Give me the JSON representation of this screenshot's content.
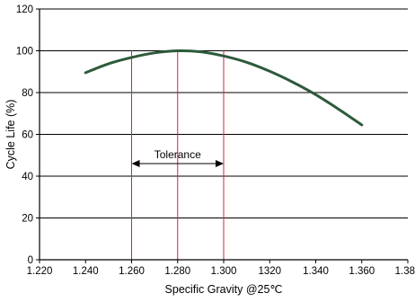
{
  "chart_data": {
    "type": "line",
    "xlabel": "Specific Gravity @25℃",
    "ylabel": "Cycle Life (%)",
    "xlim": [
      1.22,
      1.38
    ],
    "ylim": [
      0,
      120
    ],
    "x_ticks": [
      "1.220",
      "1.240",
      "1.260",
      "1.280",
      "1.300",
      "1320",
      "1.340",
      "1.360",
      "1.380"
    ],
    "y_ticks": [
      "0",
      "20",
      "40",
      "60",
      "80",
      "100",
      "120"
    ],
    "grid": "horizontal",
    "series": [
      {
        "color": "#2d5a3a",
        "x": [
          1.24,
          1.25,
          1.26,
          1.27,
          1.28,
          1.29,
          1.3,
          1.31,
          1.32,
          1.33,
          1.34,
          1.35,
          1.36
        ],
        "y": [
          89.5,
          93.8,
          96.8,
          99.0,
          100.0,
          99.5,
          97.5,
          94.5,
          90.2,
          85.0,
          79.0,
          72.0,
          64.5
        ]
      }
    ],
    "reference_lines": [
      {
        "x": 1.26,
        "color": "#d9223c"
      },
      {
        "x": 1.28,
        "color": "#d9223c"
      },
      {
        "x": 1.3,
        "color": "#d9223c"
      }
    ],
    "annotation": {
      "text": "Tolerance",
      "x_from": 1.26,
      "x_to": 1.3,
      "y": 46
    }
  }
}
